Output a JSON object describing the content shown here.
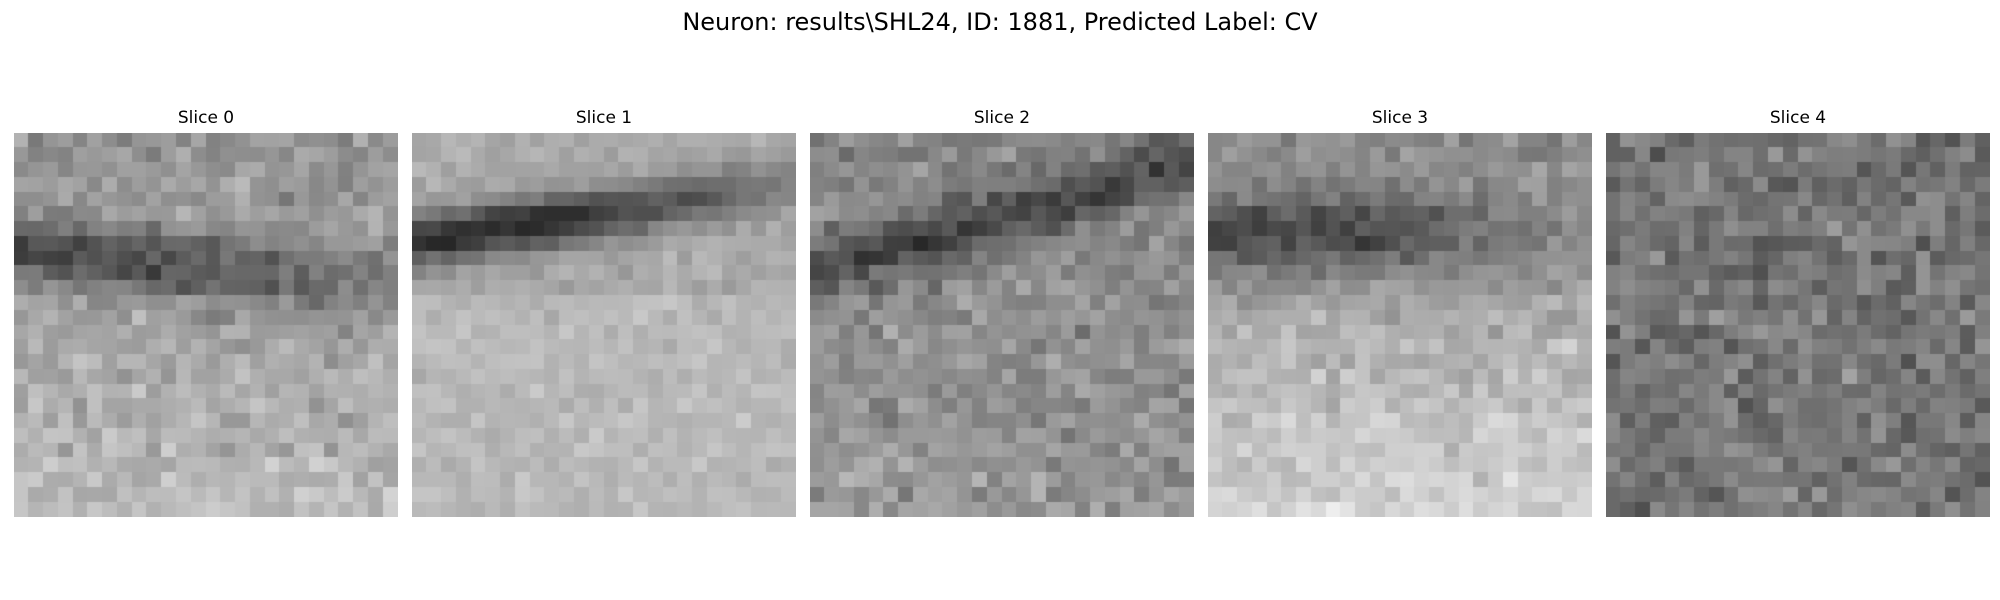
{
  "figure": {
    "title": "Neuron: results\\SHL24, ID: 1881, Predicted Label: CV",
    "colormap": "gray",
    "panels": [
      {
        "label": "Slice 0"
      },
      {
        "label": "Slice 1"
      },
      {
        "label": "Slice 2"
      },
      {
        "label": "Slice 3"
      },
      {
        "label": "Slice 4"
      }
    ]
  }
}
